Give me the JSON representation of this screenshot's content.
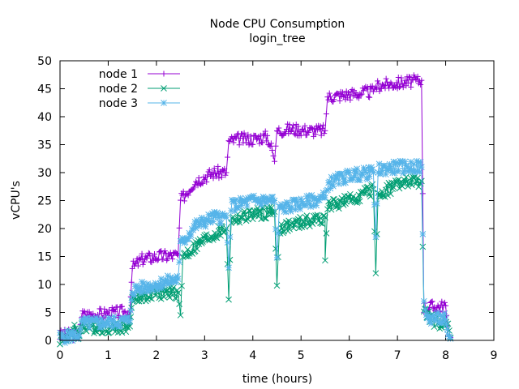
{
  "chart_data": {
    "type": "line",
    "title": "Node CPU Consumption",
    "subtitle": "login_tree",
    "xlabel": "time (hours)",
    "ylabel": "vCPU's",
    "xlim": [
      0,
      9
    ],
    "ylim": [
      0,
      50
    ],
    "xticks": [
      "0",
      "1",
      "2",
      "3",
      "4",
      "5",
      "6",
      "7",
      "8",
      "9"
    ],
    "yticks": [
      "0",
      "5",
      "10",
      "15",
      "20",
      "25",
      "30",
      "35",
      "40",
      "45",
      "50"
    ],
    "legend_position": "top-left",
    "series": [
      {
        "name": "node 1",
        "color": "#9400d3",
        "marker": "plus",
        "points": [
          [
            0,
            0.8
          ],
          [
            0.4,
            1.2
          ],
          [
            0.45,
            4.5
          ],
          [
            1.0,
            4.8
          ],
          [
            1.45,
            5.2
          ],
          [
            1.5,
            13
          ],
          [
            1.7,
            14.5
          ],
          [
            2.0,
            15
          ],
          [
            2.45,
            15.2
          ],
          [
            2.5,
            25
          ],
          [
            2.8,
            28.5
          ],
          [
            3.2,
            30
          ],
          [
            3.45,
            30
          ],
          [
            3.5,
            35.5
          ],
          [
            3.7,
            36
          ],
          [
            4.0,
            36
          ],
          [
            4.3,
            36.5
          ],
          [
            4.4,
            34
          ],
          [
            4.45,
            32
          ],
          [
            4.5,
            37.5
          ],
          [
            4.8,
            37.8
          ],
          [
            5.2,
            37.5
          ],
          [
            5.5,
            37.5
          ],
          [
            5.55,
            43.5
          ],
          [
            6.0,
            44
          ],
          [
            6.5,
            44.5
          ],
          [
            6.55,
            45.5
          ],
          [
            7.0,
            46
          ],
          [
            7.5,
            46.5
          ],
          [
            7.55,
            6
          ],
          [
            7.8,
            6
          ],
          [
            8.0,
            6.2
          ],
          [
            8.05,
            1
          ],
          [
            8.1,
            0.5
          ]
        ]
      },
      {
        "name": "node 2",
        "color": "#009e73",
        "marker": "cross",
        "points": [
          [
            0,
            0.3
          ],
          [
            0.25,
            0.8
          ],
          [
            0.3,
            3
          ],
          [
            0.4,
            0.8
          ],
          [
            0.45,
            2.5
          ],
          [
            1.0,
            2.3
          ],
          [
            1.45,
            2.5
          ],
          [
            1.5,
            7.5
          ],
          [
            2.0,
            8.5
          ],
          [
            2.45,
            8.5
          ],
          [
            2.5,
            4.5
          ],
          [
            2.55,
            15
          ],
          [
            3.0,
            18
          ],
          [
            3.45,
            20
          ],
          [
            3.5,
            7.3
          ],
          [
            3.55,
            21.5
          ],
          [
            4.0,
            22.5
          ],
          [
            4.45,
            23
          ],
          [
            4.5,
            9.8
          ],
          [
            4.55,
            20
          ],
          [
            5.0,
            21
          ],
          [
            5.5,
            22
          ],
          [
            5.5,
            14.3
          ],
          [
            5.55,
            24
          ],
          [
            6.0,
            25
          ],
          [
            6.5,
            27
          ],
          [
            6.55,
            12
          ],
          [
            6.6,
            26
          ],
          [
            7.0,
            28
          ],
          [
            7.5,
            28.5
          ],
          [
            7.55,
            5
          ],
          [
            7.8,
            3.2
          ],
          [
            8.05,
            3
          ],
          [
            8.1,
            0.5
          ]
        ]
      },
      {
        "name": "node 3",
        "color": "#56b4e9",
        "marker": "star",
        "points": [
          [
            0,
            0.5
          ],
          [
            0.4,
            1
          ],
          [
            0.45,
            3
          ],
          [
            1.0,
            3.2
          ],
          [
            1.45,
            3.5
          ],
          [
            1.5,
            9
          ],
          [
            2.0,
            10
          ],
          [
            2.45,
            11
          ],
          [
            2.5,
            17
          ],
          [
            2.8,
            20.5
          ],
          [
            3.2,
            22
          ],
          [
            3.45,
            22
          ],
          [
            3.5,
            13
          ],
          [
            3.55,
            24
          ],
          [
            4.0,
            25
          ],
          [
            4.45,
            25
          ],
          [
            4.5,
            14.8
          ],
          [
            4.55,
            23.5
          ],
          [
            5.0,
            24.5
          ],
          [
            5.5,
            25.5
          ],
          [
            5.55,
            28
          ],
          [
            6.0,
            29.5
          ],
          [
            6.5,
            30
          ],
          [
            6.55,
            18.5
          ],
          [
            6.6,
            30.5
          ],
          [
            7.0,
            31
          ],
          [
            7.5,
            31
          ],
          [
            7.55,
            7
          ],
          [
            7.6,
            4
          ],
          [
            8.0,
            3.8
          ],
          [
            8.05,
            1
          ],
          [
            8.1,
            0.3
          ]
        ]
      }
    ]
  }
}
